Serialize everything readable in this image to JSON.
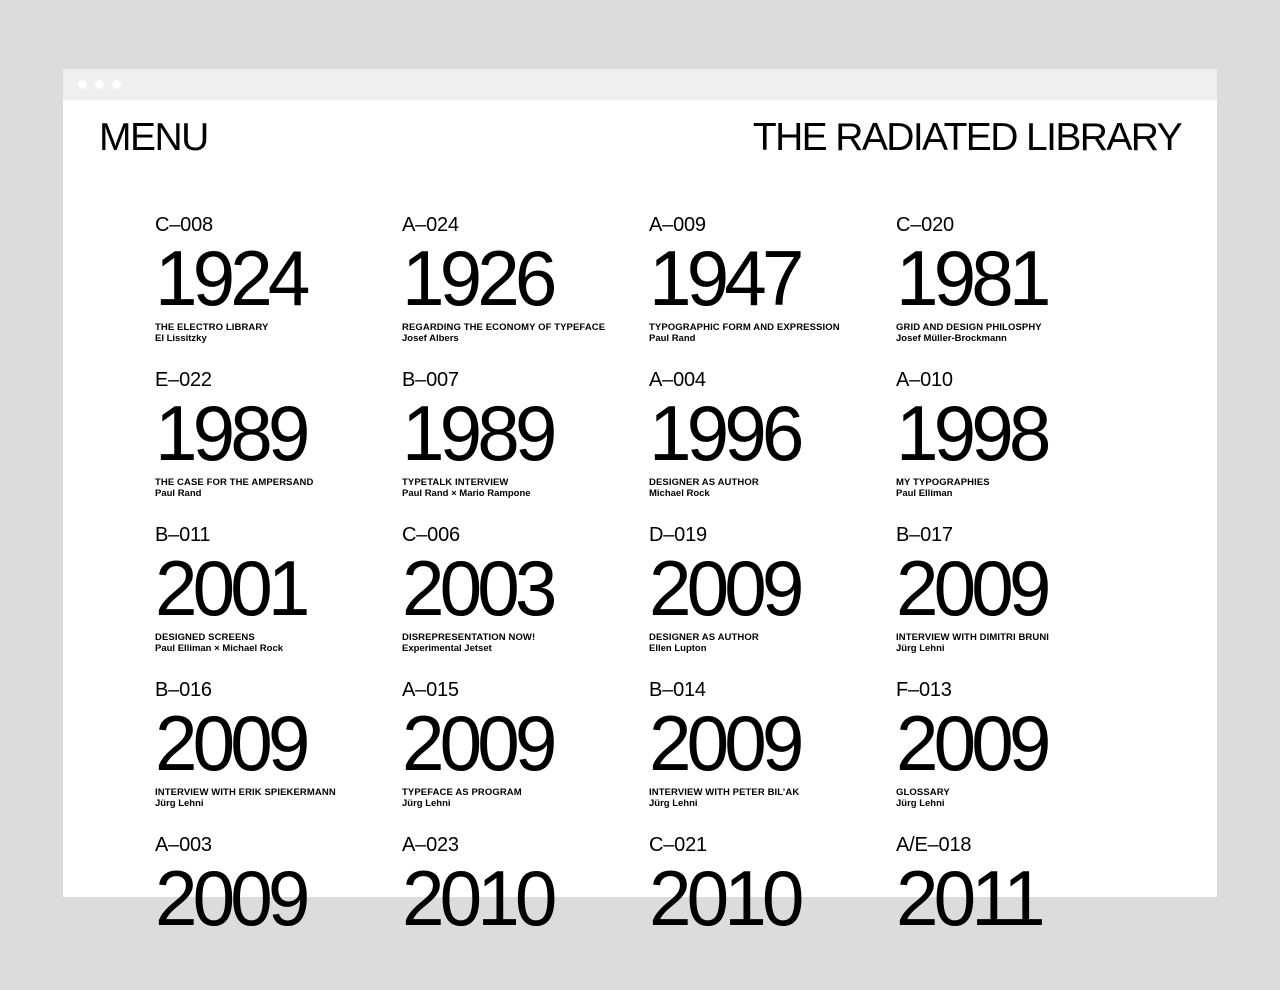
{
  "header": {
    "menu_label": "MENU",
    "site_title": "THE RADIATED LIBRARY"
  },
  "entries": [
    {
      "code": "C–008",
      "year": "1924",
      "title": "THE ELECTRO LIBRARY",
      "author": "El Lissitzky"
    },
    {
      "code": "A–024",
      "year": "1926",
      "title": "REGARDING THE ECONOMY OF TYPEFACE",
      "author": "Josef Albers"
    },
    {
      "code": "A–009",
      "year": "1947",
      "title": "TYPOGRAPHIC FORM AND EXPRESSION",
      "author": "Paul Rand"
    },
    {
      "code": "C–020",
      "year": "1981",
      "title": "GRID AND DESIGN PHILOSPHY",
      "author": "Josef Müller-Brockmann"
    },
    {
      "code": "E–022",
      "year": "1989",
      "title": "THE CASE FOR THE AMPERSAND",
      "author": "Paul Rand"
    },
    {
      "code": "B–007",
      "year": "1989",
      "title": "TYPETALK INTERVIEW",
      "author": "Paul Rand × Mario Rampone"
    },
    {
      "code": "A–004",
      "year": "1996",
      "title": "DESIGNER AS AUTHOR",
      "author": "Michael Rock"
    },
    {
      "code": "A–010",
      "year": "1998",
      "title": "MY TYPOGRAPHIES",
      "author": "Paul Elliman"
    },
    {
      "code": "B–011",
      "year": "2001",
      "title": "DESIGNED SCREENS",
      "author": "Paul Elliman × Michael Rock"
    },
    {
      "code": "C–006",
      "year": "2003",
      "title": "DISREPRESENTATION NOW!",
      "author": "Experimental Jetset"
    },
    {
      "code": "D–019",
      "year": "2009",
      "title": "DESIGNER AS AUTHOR",
      "author": "Ellen Lupton"
    },
    {
      "code": "B–017",
      "year": "2009",
      "title": "INTERVIEW WITH DIMITRI BRUNI",
      "author": "Jürg Lehni"
    },
    {
      "code": "B–016",
      "year": "2009",
      "title": "INTERVIEW WITH ERIK SPIEKERMANN",
      "author": "Jürg Lehni"
    },
    {
      "code": "A–015",
      "year": "2009",
      "title": "TYPEFACE AS PROGRAM",
      "author": "Jürg Lehni"
    },
    {
      "code": "B–014",
      "year": "2009",
      "title": "INTERVIEW WITH PETER BIL’AK",
      "author": "Jürg Lehni"
    },
    {
      "code": "F–013",
      "year": "2009",
      "title": "GLOSSARY",
      "author": "Jürg Lehni"
    },
    {
      "code": "A–003",
      "year": "2009",
      "title": "",
      "author": ""
    },
    {
      "code": "A–023",
      "year": "2010",
      "title": "",
      "author": ""
    },
    {
      "code": "C–021",
      "year": "2010",
      "title": "",
      "author": ""
    },
    {
      "code": "A/E–018",
      "year": "2011",
      "title": "",
      "author": ""
    }
  ],
  "colors": {
    "background": "#dcdcdc",
    "window": "#ffffff",
    "titlebar": "#efefef",
    "text": "#000000"
  }
}
